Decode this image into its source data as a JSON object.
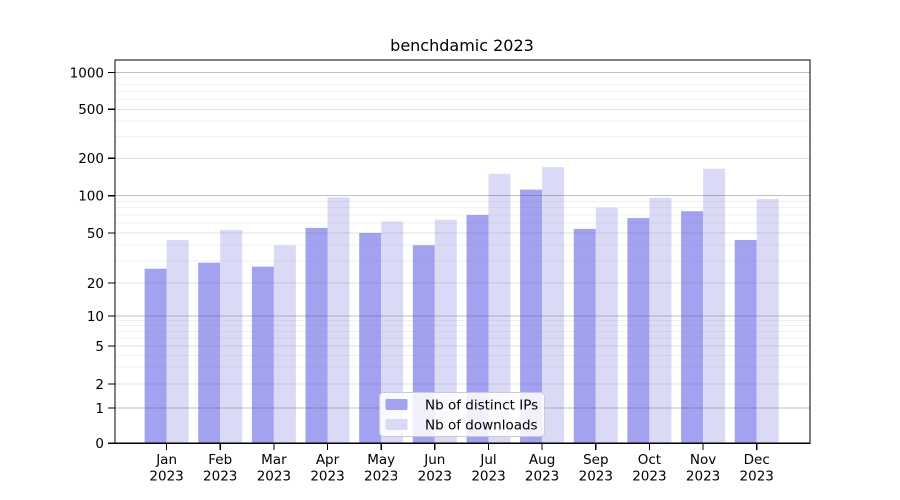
{
  "chart_data": {
    "type": "bar",
    "title": "benchdamic 2023",
    "categories": [
      "Jan",
      "Feb",
      "Mar",
      "Apr",
      "May",
      "Jun",
      "Jul",
      "Aug",
      "Sep",
      "Oct",
      "Nov",
      "Dec"
    ],
    "year_label": "2023",
    "series": [
      {
        "name": "Nb of distinct IPs",
        "color": "#a2a2f0",
        "values": [
          26,
          29,
          27,
          55,
          50,
          40,
          70,
          112,
          54,
          66,
          75,
          44
        ]
      },
      {
        "name": "Nb of downloads",
        "color": "#dadaf7",
        "values": [
          44,
          53,
          40,
          97,
          62,
          64,
          150,
          170,
          80,
          96,
          165,
          94
        ]
      }
    ],
    "y_axis": {
      "scale": "symlog",
      "ticks": [
        0,
        1,
        2,
        5,
        10,
        20,
        50,
        100,
        200,
        500,
        1000
      ],
      "minor_gridlines": [
        3,
        4,
        6,
        7,
        8,
        9,
        30,
        40,
        60,
        70,
        80,
        90,
        300,
        400,
        600,
        700,
        800,
        900
      ]
    },
    "legend_position": "inside-bottom-center",
    "grid": "horizontal major+minor, drawn over bars",
    "colors": {
      "major_grid": "rgba(90,90,90,0.38)",
      "mid_grid": "rgba(110,110,110,0.20)",
      "minor_grid": "rgba(125,125,125,0.11)",
      "axis": "#000000",
      "text": "#000000"
    }
  }
}
